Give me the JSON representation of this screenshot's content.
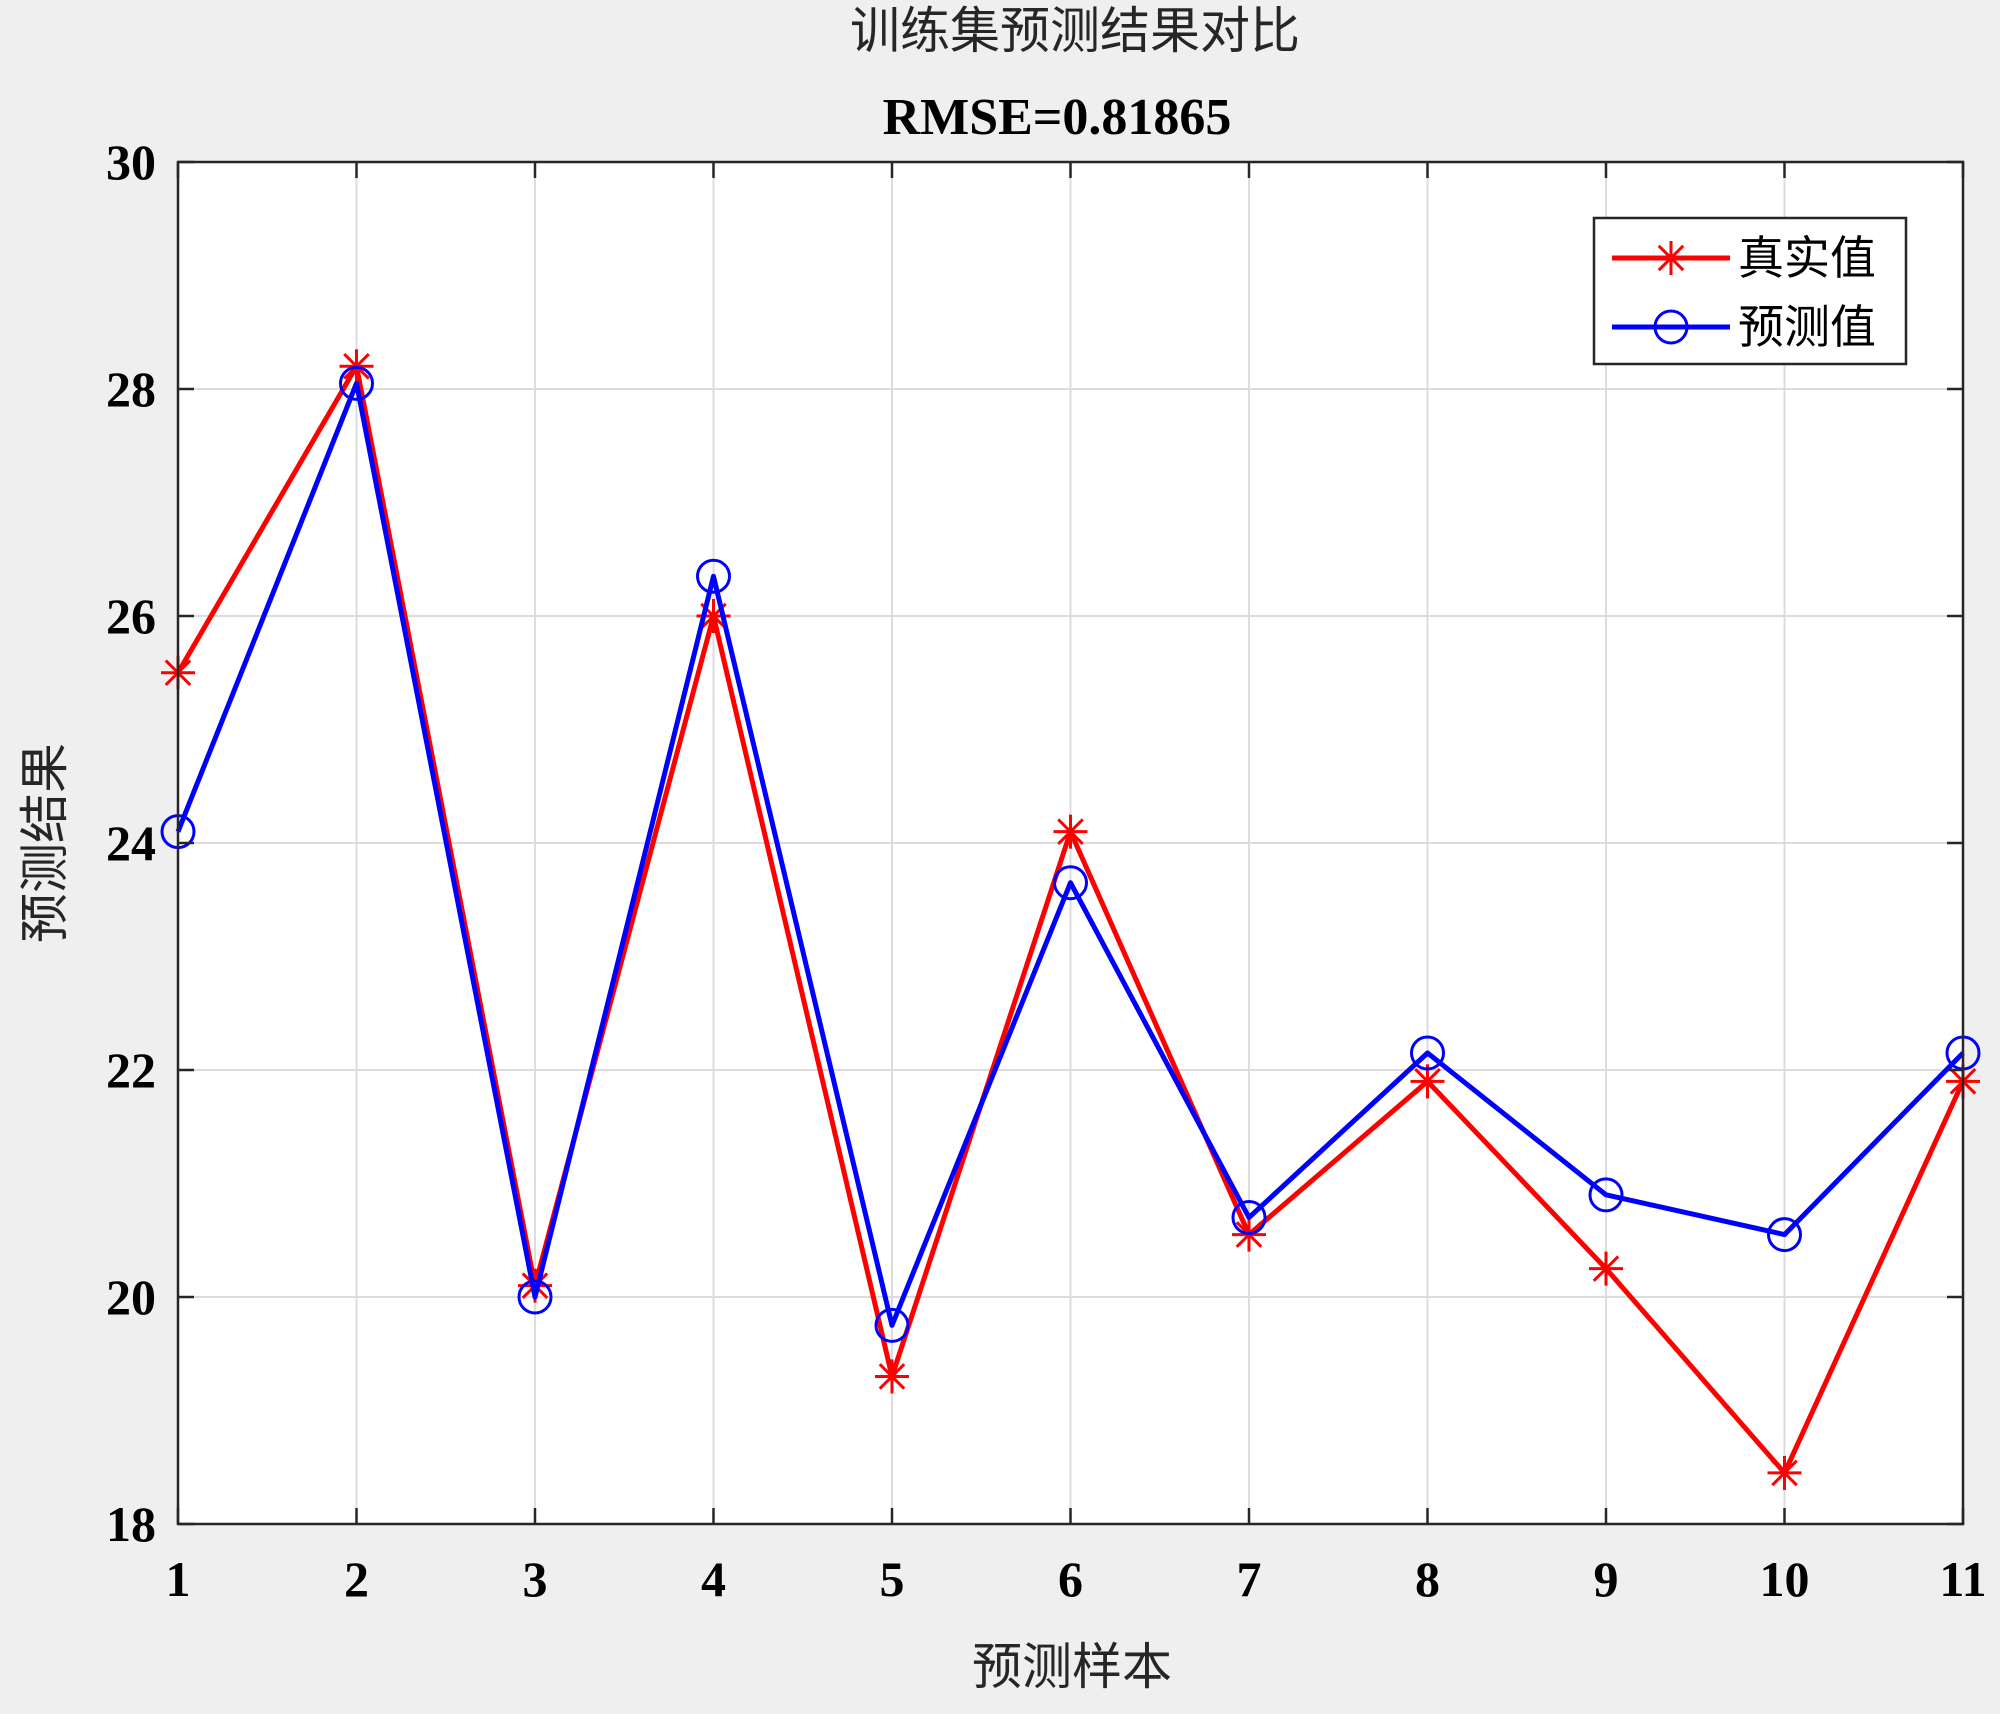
{
  "chart_data": {
    "type": "line",
    "title": "训练集预测结果对比",
    "subtitle": "RMSE=0.81865",
    "xlabel": "预测样本",
    "ylabel": "预测结果",
    "x": [
      1,
      2,
      3,
      4,
      5,
      6,
      7,
      8,
      9,
      10,
      11
    ],
    "xlim": [
      1,
      11
    ],
    "ylim": [
      18,
      30
    ],
    "xticks": [
      "1",
      "2",
      "3",
      "4",
      "5",
      "6",
      "7",
      "8",
      "9",
      "10",
      "11"
    ],
    "yticks": [
      "18",
      "20",
      "22",
      "24",
      "26",
      "28",
      "30"
    ],
    "grid": true,
    "legend_position": "top-right",
    "series": [
      {
        "name": "真实值",
        "color": "#ff0000",
        "marker": "asterisk",
        "values": [
          25.5,
          28.2,
          20.1,
          26.0,
          19.3,
          24.1,
          20.55,
          21.9,
          20.25,
          18.45,
          21.9
        ]
      },
      {
        "name": "预测值",
        "color": "#0000ff",
        "marker": "circle",
        "values": [
          24.1,
          28.05,
          20.0,
          26.35,
          19.75,
          23.65,
          20.7,
          22.15,
          20.9,
          20.55,
          22.15
        ]
      }
    ]
  }
}
